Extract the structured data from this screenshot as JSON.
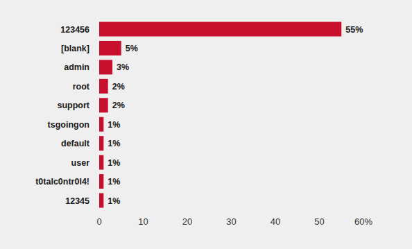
{
  "chart_data": {
    "type": "bar",
    "orientation": "horizontal",
    "categories": [
      "123456",
      "[blank]",
      "admin",
      "root",
      "support",
      "tsgoingon",
      "default",
      "user",
      "t0talc0ntr0l4!",
      "12345"
    ],
    "values": [
      55,
      5,
      3,
      2,
      2,
      1,
      1,
      1,
      1,
      1
    ],
    "value_labels": [
      "55%",
      "5%",
      "3%",
      "2%",
      "2%",
      "1%",
      "1%",
      "1%",
      "1%",
      "1%"
    ],
    "data_labels": true,
    "color": "#c8102e",
    "xlim": [
      0,
      60
    ],
    "xticks": [
      0,
      10,
      20,
      30,
      40,
      50,
      {
        "value": 60,
        "label": "60%"
      }
    ],
    "grid": false
  }
}
